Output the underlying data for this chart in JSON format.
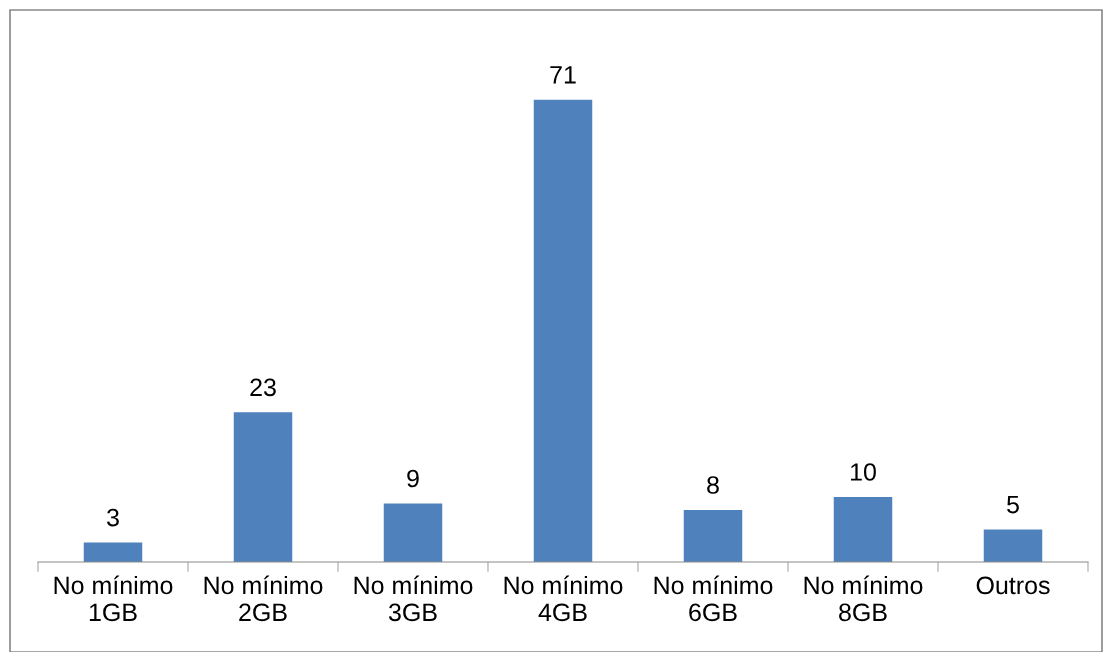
{
  "chart_data": {
    "type": "bar",
    "categories": [
      "No mínimo\n1GB",
      "No mínimo\n2GB",
      "No mínimo\n3GB",
      "No mínimo\n4GB",
      "No mínimo\n6GB",
      "No mínimo\n8GB",
      "Outros"
    ],
    "values": [
      3,
      23,
      9,
      71,
      8,
      10,
      5
    ],
    "color": "#4f81bd",
    "data_labels": true,
    "grid": false,
    "legend": false
  }
}
